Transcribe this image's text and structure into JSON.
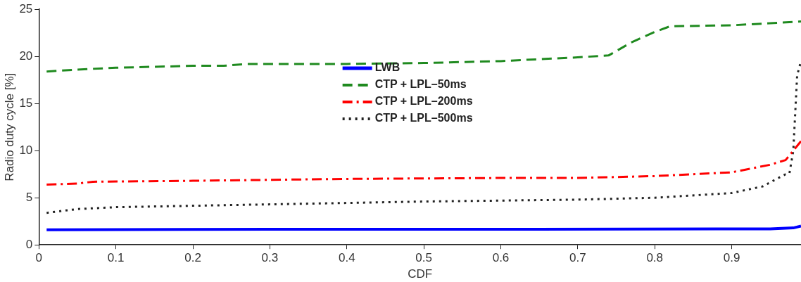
{
  "chart_data": {
    "type": "line",
    "xlabel": "CDF",
    "ylabel": "Radio duty cycle [%]",
    "xlim": [
      0,
      0.99
    ],
    "xticks": [
      0,
      0.1,
      0.2,
      0.3,
      0.4,
      0.5,
      0.6,
      0.7,
      0.8,
      0.9
    ],
    "ylim": [
      0,
      25
    ],
    "yticks": [
      0,
      5,
      10,
      15,
      20,
      25
    ],
    "grid": false,
    "legend": "top",
    "marker": "none",
    "series": [
      {
        "name": "LWB",
        "color": "#0000ff",
        "line_style": "solid",
        "x": [
          0.01,
          0.3,
          0.6,
          0.9,
          0.95,
          0.98,
          0.99
        ],
        "values": [
          1.6,
          1.65,
          1.65,
          1.7,
          1.7,
          1.8,
          2.0
        ]
      },
      {
        "name": "CTP + LPL–50ms",
        "color": "#1f8a1f",
        "line_style": "dashed",
        "x": [
          0.01,
          0.05,
          0.1,
          0.2,
          0.24,
          0.27,
          0.4,
          0.5,
          0.6,
          0.7,
          0.74,
          0.77,
          0.8,
          0.82,
          0.9,
          0.99
        ],
        "values": [
          18.4,
          18.6,
          18.8,
          19.0,
          19.0,
          19.2,
          19.2,
          19.3,
          19.5,
          19.9,
          20.1,
          21.5,
          22.6,
          23.2,
          23.3,
          23.7
        ]
      },
      {
        "name": "CTP + LPL–200ms",
        "color": "#ff0000",
        "line_style": "dashdot",
        "x": [
          0.01,
          0.05,
          0.07,
          0.2,
          0.4,
          0.6,
          0.7,
          0.8,
          0.9,
          0.95,
          0.97,
          0.99
        ],
        "values": [
          6.4,
          6.5,
          6.7,
          6.8,
          7.0,
          7.1,
          7.1,
          7.3,
          7.7,
          8.5,
          9.0,
          11.0
        ]
      },
      {
        "name": "CTP + LPL–500ms",
        "color": "#222222",
        "line_style": "dotted",
        "x": [
          0.01,
          0.05,
          0.1,
          0.3,
          0.5,
          0.7,
          0.8,
          0.9,
          0.94,
          0.97,
          0.975,
          0.98,
          0.985,
          0.99
        ],
        "values": [
          3.4,
          3.8,
          4.0,
          4.3,
          4.6,
          4.8,
          5.0,
          5.5,
          6.2,
          7.5,
          7.6,
          10.0,
          18.0,
          19.5
        ]
      }
    ]
  }
}
